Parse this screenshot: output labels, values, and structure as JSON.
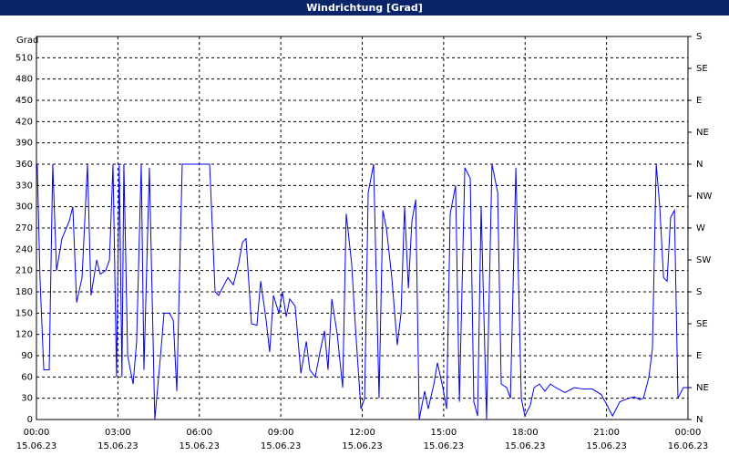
{
  "chart_data": {
    "type": "line",
    "title": "Windrichtung [Grad]",
    "y_label": "Grad",
    "color": "#0000ff",
    "grid": true,
    "xlim": [
      0,
      24
    ],
    "ylim": [
      0,
      540
    ],
    "y2lim": [
      0,
      540
    ],
    "xticks": [
      {
        "value": 0,
        "label": "00:00"
      },
      {
        "value": 3,
        "label": "03:00"
      },
      {
        "value": 6,
        "label": "06:00"
      },
      {
        "value": 9,
        "label": "09:00"
      },
      {
        "value": 12,
        "label": "12:00"
      },
      {
        "value": 15,
        "label": "15:00"
      },
      {
        "value": 18,
        "label": "18:00"
      },
      {
        "value": 21,
        "label": "21:00"
      },
      {
        "value": 24,
        "label": "00:00"
      }
    ],
    "xtick_dates": [
      "15.06.23",
      "15.06.23",
      "15.06.23",
      "15.06.23",
      "15.06.23",
      "15.06.23",
      "15.06.23",
      "15.06.23",
      "16.06.23"
    ],
    "yticks": [
      0,
      30,
      60,
      90,
      120,
      150,
      180,
      210,
      240,
      270,
      300,
      330,
      360,
      390,
      420,
      450,
      480,
      510
    ],
    "y2ticks": [
      {
        "value": 0,
        "label": "N"
      },
      {
        "value": 45,
        "label": "NE"
      },
      {
        "value": 90,
        "label": "E"
      },
      {
        "value": 135,
        "label": "SE"
      },
      {
        "value": 180,
        "label": "S"
      },
      {
        "value": 225,
        "label": "SW"
      },
      {
        "value": 270,
        "label": "W"
      },
      {
        "value": 315,
        "label": "NW"
      },
      {
        "value": 360,
        "label": "N"
      },
      {
        "value": 405,
        "label": "NE"
      },
      {
        "value": 450,
        "label": "E"
      },
      {
        "value": 495,
        "label": "SE"
      },
      {
        "value": 540,
        "label": "S"
      }
    ],
    "x": [
      0.03,
      0.13,
      0.27,
      0.47,
      0.6,
      0.74,
      0.94,
      1.21,
      1.34,
      1.48,
      1.68,
      1.88,
      2.01,
      2.22,
      2.35,
      2.55,
      2.69,
      2.82,
      2.95,
      3.05,
      3.15,
      3.22,
      3.36,
      3.56,
      3.69,
      3.86,
      3.96,
      4.16,
      4.36,
      4.57,
      4.7,
      4.9,
      5.04,
      5.17,
      5.37,
      6.38,
      6.58,
      6.71,
      7.05,
      7.25,
      7.45,
      7.59,
      7.72,
      7.92,
      8.12,
      8.26,
      8.46,
      8.59,
      8.73,
      8.93,
      9.06,
      9.2,
      9.33,
      9.53,
      9.74,
      9.94,
      10.07,
      10.27,
      10.47,
      10.61,
      10.74,
      10.88,
      11.08,
      11.28,
      11.41,
      11.61,
      11.75,
      11.95,
      12.09,
      12.22,
      12.42,
      12.62,
      12.76,
      12.89,
      13.09,
      13.29,
      13.43,
      13.56,
      13.7,
      13.83,
      13.97,
      14.1,
      14.3,
      14.43,
      14.64,
      14.77,
      14.97,
      15.11,
      15.24,
      15.44,
      15.58,
      15.78,
      15.98,
      16.11,
      16.25,
      16.38,
      16.58,
      16.78,
      16.99,
      17.12,
      17.32,
      17.46,
      17.66,
      17.86,
      17.99,
      18.19,
      18.33,
      18.53,
      18.73,
      18.93,
      19.13,
      19.47,
      19.81,
      20.14,
      20.48,
      20.81,
      21.02,
      21.22,
      21.49,
      21.82,
      22.02,
      22.22,
      22.36,
      22.56,
      22.69,
      22.83,
      22.96,
      23.1,
      23.23,
      23.36,
      23.5,
      23.63,
      23.83,
      24.0
    ],
    "values": [
      360,
      200,
      70,
      70,
      360,
      210,
      255,
      280,
      300,
      165,
      200,
      360,
      175,
      225,
      205,
      210,
      225,
      360,
      60,
      360,
      60,
      360,
      90,
      50,
      110,
      360,
      70,
      355,
      0,
      90,
      150,
      150,
      140,
      40,
      360,
      360,
      180,
      175,
      200,
      190,
      220,
      250,
      255,
      135,
      133,
      195,
      140,
      95,
      175,
      150,
      180,
      145,
      170,
      160,
      65,
      110,
      70,
      60,
      100,
      125,
      70,
      170,
      120,
      45,
      290,
      220,
      130,
      15,
      30,
      320,
      360,
      30,
      295,
      270,
      200,
      105,
      150,
      300,
      185,
      280,
      310,
      0,
      40,
      15,
      50,
      80,
      45,
      15,
      290,
      330,
      25,
      355,
      340,
      25,
      5,
      300,
      0,
      360,
      320,
      50,
      45,
      30,
      355,
      30,
      5,
      20,
      45,
      50,
      40,
      50,
      45,
      38,
      45,
      43,
      43,
      35,
      20,
      5,
      25,
      30,
      32,
      28,
      30,
      60,
      100,
      360,
      300,
      200,
      195,
      285,
      295,
      30,
      45,
      45
    ]
  }
}
